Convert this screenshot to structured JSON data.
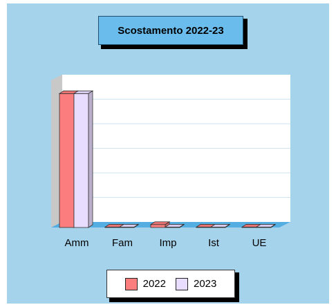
{
  "chart_data": {
    "type": "bar",
    "title": "Scostamento 2022-23",
    "categories": [
      "Amm",
      "Fam",
      "Imp",
      "Ist",
      "UE"
    ],
    "series": [
      {
        "name": "2022",
        "values": [
          100,
          0.3,
          2.2,
          0.3,
          0.3
        ],
        "color": "#fb7d7d"
      },
      {
        "name": "2023",
        "values": [
          100,
          0.3,
          0.3,
          0.3,
          0.3
        ],
        "color": "#e8dcff"
      }
    ],
    "ylim": [
      0,
      110
    ],
    "xlabel": "",
    "ylabel": "",
    "grid": true,
    "legend": "bottom",
    "colors": {
      "background": "#a6d3ec",
      "title_box": "#69bcec",
      "plot_wall": "#ffffff",
      "floor": "#55aee2",
      "gridline": "#cfe5f1"
    }
  }
}
